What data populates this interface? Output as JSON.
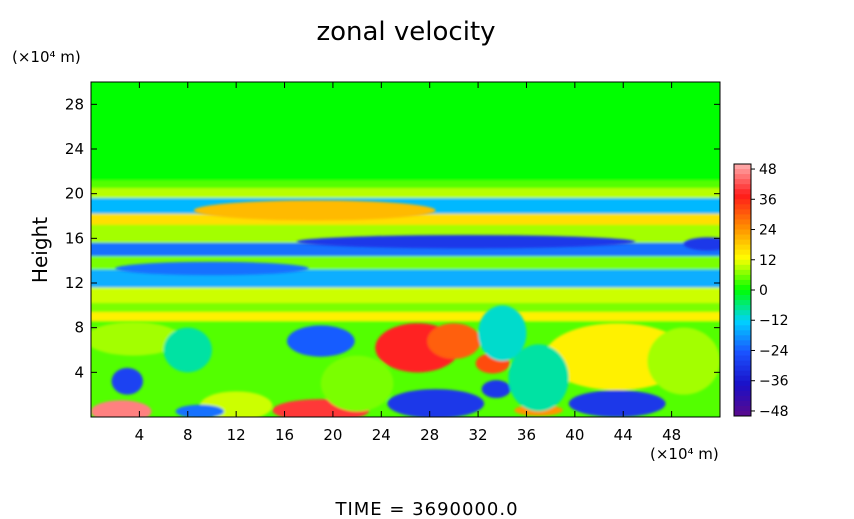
{
  "chart_data": {
    "type": "heatmap",
    "title": "zonal velocity",
    "xlabel": "",
    "ylabel": "Height",
    "x_unit": "(×10⁴ m)",
    "y_unit": "(×10⁴ m)",
    "footer": "TIME = 3690000.0",
    "xlim": [
      0,
      52
    ],
    "ylim": [
      0,
      30
    ],
    "x_ticks": [
      4,
      8,
      12,
      16,
      20,
      24,
      28,
      32,
      36,
      40,
      44,
      48
    ],
    "y_ticks": [
      4,
      8,
      12,
      16,
      20,
      24,
      28
    ],
    "colorbar": {
      "ticks": [
        48,
        36,
        24,
        12,
        0,
        -12,
        -24,
        -36,
        -48
      ],
      "range": [
        -50,
        50
      ],
      "colors": [
        "#5a0a8c",
        "#1a10c8",
        "#1a52ff",
        "#00d2ff",
        "#00ff00",
        "#ffff00",
        "#ff8c00",
        "#ff1a1a",
        "#ffb0b0"
      ]
    },
    "background_value": 0,
    "layers": [
      {
        "y": 29,
        "value": 0
      },
      {
        "y": 21.2,
        "value": 4
      },
      {
        "y": 20.5,
        "value": 9
      },
      {
        "y": 19.6,
        "value": -15
      },
      {
        "y": 18.2,
        "value": 16
      },
      {
        "y": 17.2,
        "value": 8
      },
      {
        "y": 15.6,
        "value": -22
      },
      {
        "y": 14.4,
        "value": 6
      },
      {
        "y": 13.2,
        "value": -16
      },
      {
        "y": 11.6,
        "value": 10
      },
      {
        "y": 10.2,
        "value": 6
      },
      {
        "y": 9.4,
        "value": 14
      },
      {
        "y": 8.6,
        "value": 4
      }
    ],
    "features": [
      {
        "x": 18.5,
        "y": 18.5,
        "rx": 10,
        "ry": 0.9,
        "value": 20
      },
      {
        "x": 31,
        "y": 15.7,
        "rx": 14,
        "ry": 0.6,
        "value": -30
      },
      {
        "x": 51,
        "y": 15.5,
        "rx": 2,
        "ry": 0.6,
        "value": -30
      },
      {
        "x": 10,
        "y": 13.3,
        "rx": 8,
        "ry": 0.6,
        "value": -22
      },
      {
        "x": 27,
        "y": 6.2,
        "rx": 3.5,
        "ry": 2.2,
        "value": 38
      },
      {
        "x": 30,
        "y": 6.8,
        "rx": 2.2,
        "ry": 1.6,
        "value": 30
      },
      {
        "x": 33.2,
        "y": 4.8,
        "rx": 1.4,
        "ry": 0.9,
        "value": 32
      },
      {
        "x": 43.5,
        "y": 5.4,
        "rx": 4,
        "ry": 2,
        "value": 40
      },
      {
        "x": 43.5,
        "y": 5.4,
        "rx": 6,
        "ry": 3,
        "value": 14
      },
      {
        "x": 19,
        "y": 6.8,
        "rx": 2.8,
        "ry": 1.4,
        "value": -24
      },
      {
        "x": 34,
        "y": 7.5,
        "rx": 2,
        "ry": 2.5,
        "value": -10
      },
      {
        "x": 3,
        "y": 3.2,
        "rx": 1.3,
        "ry": 1.2,
        "value": -28
      },
      {
        "x": 3.5,
        "y": 7,
        "rx": 4,
        "ry": 1.5,
        "value": 8
      },
      {
        "x": 8,
        "y": 6,
        "rx": 2,
        "ry": 2,
        "value": -8
      },
      {
        "x": 2.5,
        "y": 0.5,
        "rx": 2.5,
        "ry": 1,
        "value": 46
      },
      {
        "x": 19,
        "y": 0.6,
        "rx": 4,
        "ry": 1,
        "value": 40
      },
      {
        "x": 28.5,
        "y": 1.2,
        "rx": 4,
        "ry": 1.3,
        "value": -30
      },
      {
        "x": 33.5,
        "y": 2.5,
        "rx": 1.2,
        "ry": 0.8,
        "value": -30
      },
      {
        "x": 43.5,
        "y": 1.2,
        "rx": 4,
        "ry": 1.2,
        "value": -30
      },
      {
        "x": 12,
        "y": 1,
        "rx": 3,
        "ry": 1.3,
        "value": 10
      },
      {
        "x": 9,
        "y": 0.5,
        "rx": 2,
        "ry": 0.6,
        "value": -22
      },
      {
        "x": 37,
        "y": 0.6,
        "rx": 2,
        "ry": 0.5,
        "value": 24
      },
      {
        "x": 37,
        "y": 3.5,
        "rx": 2.5,
        "ry": 3,
        "value": -8
      },
      {
        "x": 22,
        "y": 3,
        "rx": 3,
        "ry": 2.5,
        "value": 6
      },
      {
        "x": 49,
        "y": 5,
        "rx": 3,
        "ry": 3,
        "value": 8
      }
    ]
  }
}
